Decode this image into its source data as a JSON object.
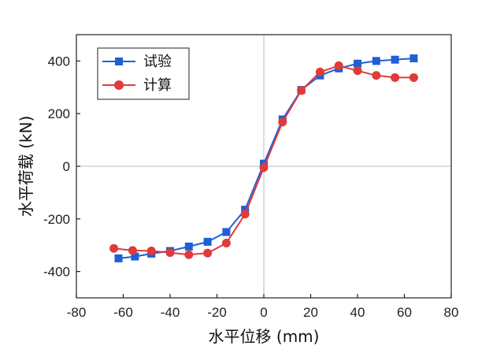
{
  "chart_data": {
    "type": "line",
    "title": "",
    "xlabel": "水平位移 (mm)",
    "ylabel": "水平荷载 (kN)",
    "xlim": [
      -80,
      80
    ],
    "ylim": [
      -500,
      500
    ],
    "xticks": [
      -80,
      -60,
      -40,
      -20,
      0,
      20,
      40,
      60,
      80
    ],
    "yticks": [
      -400,
      -200,
      0,
      200,
      400
    ],
    "xtick_labels": [
      "-80",
      "-60",
      "-40",
      "-20",
      "0",
      "20",
      "40",
      "60",
      "80"
    ],
    "ytick_labels": [
      "-400",
      "-200",
      "0",
      "200",
      "400"
    ],
    "zero_lines": true,
    "legend_position": "top-left",
    "series": [
      {
        "name": "试验",
        "color": "#1f5fd6",
        "marker": "square",
        "x": [
          -62,
          -55,
          -48,
          -40,
          -32,
          -24,
          -16,
          -8,
          0,
          8,
          16,
          24,
          32,
          40,
          48,
          56,
          64
        ],
        "y": [
          -350,
          -343,
          -332,
          -322,
          -305,
          -287,
          -250,
          -165,
          10,
          178,
          290,
          345,
          372,
          390,
          400,
          405,
          410
        ]
      },
      {
        "name": "计算",
        "color": "#e03a3a",
        "marker": "circle",
        "x": [
          -64,
          -56,
          -48,
          -40,
          -32,
          -24,
          -16,
          -8,
          0,
          8,
          16,
          24,
          32,
          40,
          48,
          56,
          64
        ],
        "y": [
          -312,
          -320,
          -322,
          -328,
          -336,
          -330,
          -292,
          -182,
          -5,
          168,
          288,
          358,
          382,
          363,
          345,
          337,
          337
        ]
      }
    ]
  }
}
